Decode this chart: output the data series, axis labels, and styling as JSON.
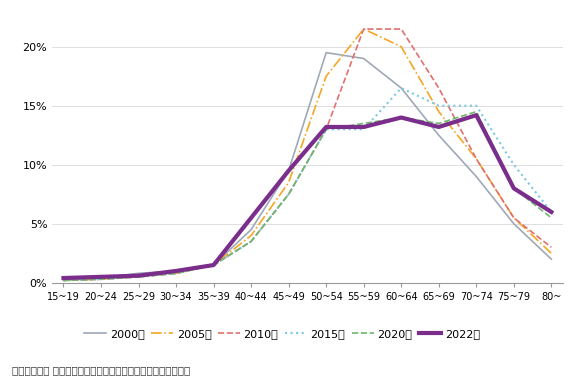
{
  "categories": [
    "15~19",
    "20~24",
    "25~29",
    "30~34",
    "35~39",
    "40~44",
    "45~49",
    "50~54",
    "55~59",
    "60~64",
    "65~69",
    "70~74",
    "75~79",
    "80~"
  ],
  "series": {
    "2000年": {
      "values": [
        0.2,
        0.4,
        0.8,
        1.0,
        1.5,
        4.5,
        9.5,
        19.5,
        19.0,
        16.5,
        12.5,
        9.0,
        5.0,
        2.0
      ],
      "color": "#a0a8b8",
      "linestyle": "-",
      "linewidth": 1.2,
      "zorder": 2
    },
    "2005年": {
      "values": [
        0.2,
        0.3,
        0.5,
        0.8,
        1.5,
        4.0,
        8.5,
        17.5,
        21.5,
        20.0,
        14.5,
        10.5,
        5.5,
        2.5
      ],
      "color": "#f5a623",
      "linestyle": "-.",
      "linewidth": 1.2,
      "zorder": 3
    },
    "2010年": {
      "values": [
        0.2,
        0.3,
        0.5,
        0.8,
        1.5,
        3.5,
        7.5,
        13.0,
        21.5,
        21.5,
        16.5,
        10.5,
        5.5,
        3.0
      ],
      "color": "#e07070",
      "linestyle": "--",
      "linewidth": 1.2,
      "zorder": 4
    },
    "2015年": {
      "values": [
        0.2,
        0.3,
        0.5,
        0.8,
        1.5,
        3.5,
        7.5,
        13.0,
        13.0,
        16.5,
        15.0,
        15.0,
        10.0,
        6.0
      ],
      "color": "#7ec8e3",
      "linestyle": ":",
      "linewidth": 1.5,
      "zorder": 5
    },
    "2020年": {
      "values": [
        0.2,
        0.3,
        0.5,
        0.8,
        1.5,
        3.5,
        7.5,
        13.0,
        13.5,
        14.0,
        13.5,
        14.5,
        8.0,
        5.5
      ],
      "color": "#70b870",
      "linestyle": "--",
      "linewidth": 1.2,
      "zorder": 6
    },
    "2022年": {
      "values": [
        0.4,
        0.5,
        0.6,
        1.0,
        1.5,
        5.5,
        9.5,
        13.2,
        13.2,
        14.0,
        13.2,
        14.2,
        8.0,
        6.0
      ],
      "color": "#7b2d8b",
      "linestyle": "-",
      "linewidth": 3.0,
      "zorder": 7
    }
  },
  "ylim": [
    0,
    23
  ],
  "yticks": [
    0,
    5,
    10,
    15,
    20
  ],
  "ytick_labels": [
    "0%",
    "5%",
    "10%",
    "15%",
    "20%"
  ],
  "source_text": "資料：（株） 帝国データバンク「企業概要ファイル」再編加工",
  "legend_order": [
    "2000年",
    "2005年",
    "2010年",
    "2015年",
    "2020年",
    "2022年"
  ],
  "background_color": "#ffffff",
  "fig_width": 5.8,
  "fig_height": 3.77,
  "dpi": 100
}
